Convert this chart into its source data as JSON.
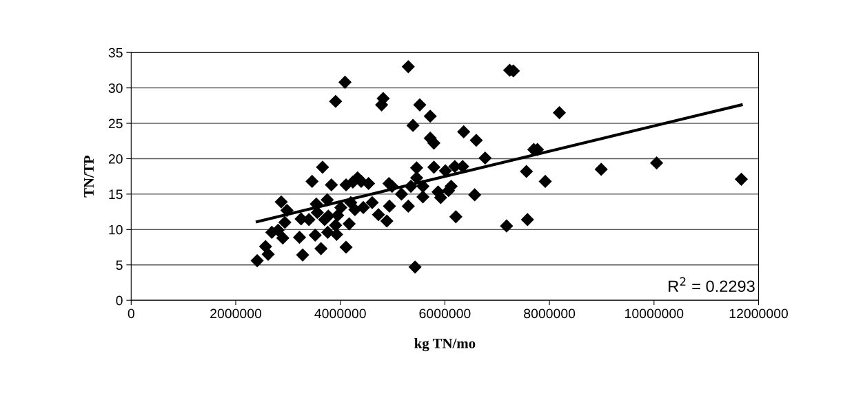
{
  "chart_data": {
    "type": "scatter",
    "xlabel": "kg TN/mo",
    "ylabel": "TN/TP",
    "xlim": [
      0,
      12000000
    ],
    "xticks": [
      0,
      2000000,
      4000000,
      6000000,
      8000000,
      10000000,
      12000000
    ],
    "ylim": [
      0,
      35
    ],
    "yticks": [
      0,
      5,
      10,
      15,
      20,
      25,
      30,
      35
    ],
    "grid": "y",
    "marker": "diamond",
    "annotations": [
      "R$^{2}$ = 0.2293"
    ],
    "series": [
      {
        "color": "#000000",
        "x": [
          2410000,
          2570000,
          2620000,
          2690000,
          2810000,
          2870000,
          2900000,
          2940000,
          2980000,
          3220000,
          3280000,
          3250000,
          3400000,
          3460000,
          3520000,
          3540000,
          3560000,
          3630000,
          3660000,
          3700000,
          3750000,
          3770000,
          3760000,
          3830000,
          3910000,
          3910000,
          3930000,
          3950000,
          4010000,
          4090000,
          4110000,
          4110000,
          4170000,
          4200000,
          4240000,
          4280000,
          4330000,
          4400000,
          4440000,
          4540000,
          4610000,
          4730000,
          4820000,
          4790000,
          4890000,
          4930000,
          4940000,
          4990000,
          5170000,
          5300000,
          5300000,
          5390000,
          5350000,
          5430000,
          5460000,
          5460000,
          5520000,
          5580000,
          5580000,
          5720000,
          5720000,
          5790000,
          5790000,
          5870000,
          5920000,
          6010000,
          6070000,
          6120000,
          6190000,
          6210000,
          6340000,
          6360000,
          6570000,
          6600000,
          6770000,
          7180000,
          7240000,
          7310000,
          7560000,
          7580000,
          7700000,
          7770000,
          7920000,
          8190000,
          8990000,
          10050000,
          11670000
        ],
        "values": [
          5.6,
          7.6,
          6.5,
          9.6,
          9.9,
          13.9,
          8.8,
          11.0,
          12.7,
          8.9,
          6.4,
          11.5,
          11.4,
          16.8,
          9.2,
          13.6,
          12.4,
          7.3,
          18.8,
          11.4,
          14.2,
          11.9,
          9.6,
          16.3,
          28.1,
          10.6,
          9.3,
          12.0,
          13.1,
          30.8,
          7.5,
          16.3,
          10.8,
          13.8,
          16.7,
          12.8,
          17.3,
          16.8,
          13.1,
          16.5,
          13.8,
          12.1,
          28.5,
          27.6,
          11.2,
          16.5,
          13.3,
          16.1,
          15.0,
          13.3,
          33.0,
          24.7,
          16.1,
          4.7,
          18.7,
          17.3,
          27.6,
          14.6,
          16.1,
          26.0,
          22.9,
          22.2,
          18.8,
          15.3,
          14.5,
          18.3,
          15.5,
          16.1,
          18.9,
          11.8,
          18.9,
          23.8,
          14.9,
          22.6,
          20.1,
          10.5,
          32.5,
          32.4,
          18.2,
          11.4,
          21.3,
          21.3,
          16.8,
          26.5,
          18.5,
          19.4,
          17.1
        ]
      },
      {
        "type": "line",
        "color": "#000000",
        "line_style": "solid",
        "marker": "none",
        "x": [
          2410000,
          11670000
        ],
        "values": [
          11.1,
          27.6
        ]
      }
    ]
  }
}
